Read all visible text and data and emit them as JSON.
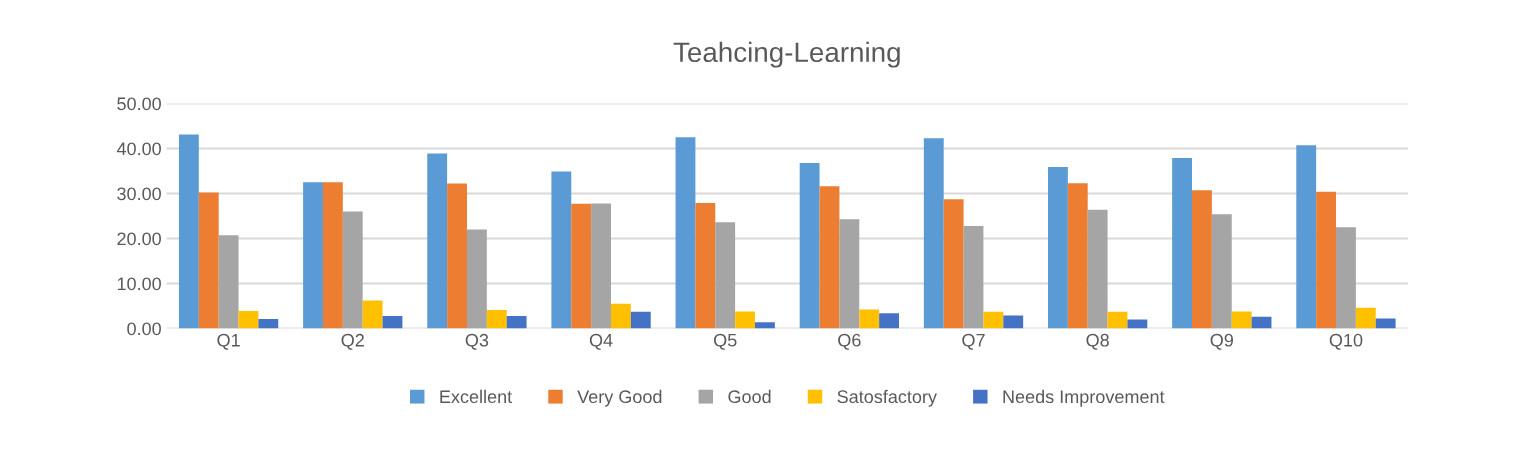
{
  "chart_data": {
    "type": "bar",
    "title": "Teahcing-Learning",
    "categories": [
      "Q1",
      "Q2",
      "Q3",
      "Q4",
      "Q5",
      "Q6",
      "Q7",
      "Q8",
      "Q9",
      "Q10"
    ],
    "series": [
      {
        "name": "Excellent",
        "color": "#5b9bd5",
        "values": [
          43.1,
          32.5,
          38.9,
          34.9,
          42.5,
          36.8,
          42.3,
          35.9,
          37.9,
          40.7
        ]
      },
      {
        "name": "Very Good",
        "color": "#ed7d31",
        "values": [
          30.2,
          32.5,
          32.2,
          27.7,
          27.9,
          31.6,
          28.7,
          32.3,
          30.7,
          30.4
        ]
      },
      {
        "name": "Good",
        "color": "#a5a5a5",
        "values": [
          20.7,
          26.0,
          22.0,
          27.8,
          23.6,
          24.3,
          22.8,
          26.4,
          25.4,
          22.5
        ]
      },
      {
        "name": "Satosfactory",
        "color": "#ffc000",
        "values": [
          3.9,
          6.2,
          4.1,
          5.5,
          3.8,
          4.2,
          3.7,
          3.7,
          3.8,
          4.6
        ]
      },
      {
        "name": "Needs Improvement",
        "color": "#4472c4",
        "values": [
          2.1,
          2.8,
          2.8,
          3.7,
          1.4,
          3.4,
          2.9,
          2.0,
          2.6,
          2.2
        ]
      }
    ],
    "ylim": [
      0,
      50
    ],
    "yticks": [
      {
        "value": 0,
        "label": "0.00"
      },
      {
        "value": 10,
        "label": "10.00"
      },
      {
        "value": 20,
        "label": "20.00"
      },
      {
        "value": 30,
        "label": "30.00"
      },
      {
        "value": 40,
        "label": "40.00"
      },
      {
        "value": 50,
        "label": "50.00"
      }
    ],
    "grid": "y",
    "legend": "bottom"
  }
}
